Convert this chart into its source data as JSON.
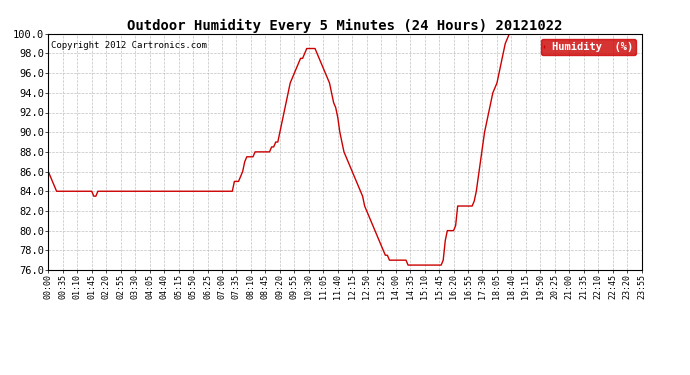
{
  "title": "Outdoor Humidity Every 5 Minutes (24 Hours) 20121022",
  "copyright": "Copyright 2012 Cartronics.com",
  "legend_label": "Humidity  (%)",
  "legend_bg": "#cc0000",
  "legend_text_color": "#ffffff",
  "line_color": "#cc0000",
  "bg_color": "#ffffff",
  "grid_color": "#bbbbbb",
  "ylim": [
    76.0,
    100.0
  ],
  "yticks": [
    76.0,
    78.0,
    80.0,
    82.0,
    84.0,
    86.0,
    88.0,
    90.0,
    92.0,
    94.0,
    96.0,
    98.0,
    100.0
  ],
  "xtick_labels": [
    "00:00",
    "00:35",
    "01:10",
    "01:45",
    "02:20",
    "02:55",
    "03:30",
    "04:05",
    "04:40",
    "05:15",
    "05:50",
    "06:25",
    "07:00",
    "07:35",
    "08:10",
    "08:45",
    "09:20",
    "09:55",
    "10:30",
    "11:05",
    "11:40",
    "12:15",
    "12:50",
    "13:25",
    "14:00",
    "14:35",
    "15:10",
    "15:45",
    "16:20",
    "16:55",
    "17:30",
    "18:05",
    "18:40",
    "19:15",
    "19:50",
    "20:25",
    "21:00",
    "21:35",
    "22:10",
    "22:45",
    "23:20",
    "23:55"
  ],
  "humidity_values": [
    86.0,
    85.5,
    85.0,
    84.5,
    84.0,
    84.0,
    84.0,
    84.0,
    84.0,
    84.0,
    84.0,
    84.0,
    84.0,
    84.0,
    84.0,
    84.0,
    84.0,
    84.0,
    84.0,
    84.0,
    84.0,
    84.0,
    83.5,
    83.5,
    84.0,
    84.0,
    84.0,
    84.0,
    84.0,
    84.0,
    84.0,
    84.0,
    84.0,
    84.0,
    84.0,
    84.0,
    84.0,
    84.0,
    84.0,
    84.0,
    84.0,
    84.0,
    84.0,
    84.0,
    84.0,
    84.0,
    84.0,
    84.0,
    84.0,
    84.0,
    84.0,
    84.0,
    84.0,
    84.0,
    84.0,
    84.0,
    84.0,
    84.0,
    84.0,
    84.0,
    84.0,
    84.0,
    84.0,
    84.0,
    84.0,
    84.0,
    84.0,
    84.0,
    84.0,
    84.0,
    84.0,
    84.0,
    84.0,
    84.0,
    84.0,
    84.0,
    84.0,
    84.0,
    84.0,
    84.0,
    84.0,
    84.0,
    84.0,
    84.0,
    84.0,
    84.0,
    84.0,
    84.0,
    84.0,
    84.0,
    85.0,
    85.0,
    85.0,
    85.5,
    86.0,
    87.0,
    87.5,
    87.5,
    87.5,
    87.5,
    88.0,
    88.0,
    88.0,
    88.0,
    88.0,
    88.0,
    88.0,
    88.0,
    88.5,
    88.5,
    89.0,
    89.0,
    90.0,
    91.0,
    92.0,
    93.0,
    94.0,
    95.0,
    95.5,
    96.0,
    96.5,
    97.0,
    97.5,
    97.5,
    98.0,
    98.5,
    98.5,
    98.5,
    98.5,
    98.5,
    98.0,
    97.5,
    97.0,
    96.5,
    96.0,
    95.5,
    95.0,
    94.0,
    93.0,
    92.5,
    91.5,
    90.0,
    89.0,
    88.0,
    87.5,
    87.0,
    86.5,
    86.0,
    85.5,
    85.0,
    84.5,
    84.0,
    83.5,
    82.5,
    82.0,
    81.5,
    81.0,
    80.5,
    80.0,
    79.5,
    79.0,
    78.5,
    78.0,
    77.5,
    77.5,
    77.0,
    77.0,
    77.0,
    77.0,
    77.0,
    77.0,
    77.0,
    77.0,
    77.0,
    76.5,
    76.5,
    76.5,
    76.5,
    76.5,
    76.5,
    76.5,
    76.5,
    76.5,
    76.5,
    76.5,
    76.5,
    76.5,
    76.5,
    76.5,
    76.5,
    76.5,
    77.0,
    79.0,
    80.0,
    80.0,
    80.0,
    80.0,
    80.5,
    82.5,
    82.5,
    82.5,
    82.5,
    82.5,
    82.5,
    82.5,
    82.5,
    83.0,
    84.0,
    85.5,
    87.0,
    88.5,
    90.0,
    91.0,
    92.0,
    93.0,
    94.0,
    94.5,
    95.0,
    96.0,
    97.0,
    98.0,
    99.0,
    99.5,
    100.0,
    100.0,
    100.0,
    100.0,
    100.0,
    100.0,
    100.0,
    100.0,
    100.0,
    100.0,
    100.0,
    100.0,
    100.0,
    100.0,
    100.0,
    100.0,
    100.0,
    100.0,
    100.0,
    100.0,
    100.0,
    100.0,
    100.0,
    100.0,
    100.0,
    100.0,
    100.0,
    100.0,
    100.0,
    100.0,
    100.0,
    100.0,
    100.0,
    100.0,
    100.0,
    100.0,
    100.0,
    100.0,
    100.0,
    100.0,
    100.0,
    100.0,
    100.0,
    100.0,
    100.0,
    100.0,
    100.0,
    100.0,
    100.0,
    100.0,
    100.0,
    100.0,
    100.0,
    100.0,
    100.0,
    100.0,
    100.0,
    100.0,
    100.0,
    100.0,
    100.0,
    100.0,
    100.0,
    100.0,
    100.0
  ]
}
